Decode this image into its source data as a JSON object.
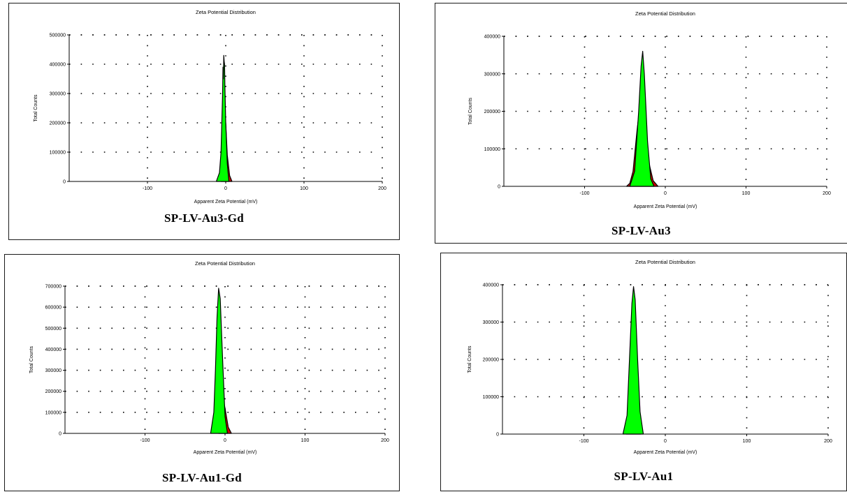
{
  "colors": {
    "fill_main": "#00ff00",
    "fill_tail": "#cc0000",
    "outline": "#000000",
    "grid": "#000000"
  },
  "chart_data": [
    {
      "type": "area",
      "title": "Zeta Potential Distribution",
      "xlabel": "Apparent Zeta Potential (mV)",
      "ylabel": "Total Counts",
      "sample_label": "SP-LV-Au3-Gd",
      "xlim": [
        -200,
        200
      ],
      "ylim": [
        0,
        500000
      ],
      "xticks": [
        -100,
        0,
        100,
        200
      ],
      "xtick_labels": [
        "-100",
        "0",
        "100",
        "200"
      ],
      "yticks": [
        0,
        100000,
        200000,
        300000,
        400000,
        500000
      ],
      "ytick_labels": [
        "0",
        "100000",
        "200000",
        "300000",
        "400000",
        "500000"
      ],
      "grid": true,
      "series": [
        {
          "x": [
            -12,
            -8,
            -6,
            -5,
            -4,
            -3.5,
            -3,
            -2.5,
            -2,
            -1.5,
            -1,
            0,
            2,
            4
          ],
          "y": [
            0,
            30000,
            100000,
            200000,
            300000,
            390000,
            350000,
            430000,
            410000,
            400000,
            320000,
            200000,
            60000,
            0
          ]
        },
        {
          "x": [
            -6,
            -4,
            -2,
            0,
            2,
            5,
            8
          ],
          "y": [
            0,
            60000,
            250000,
            200000,
            90000,
            20000,
            0
          ]
        }
      ]
    },
    {
      "type": "area",
      "title": "Zeta Potential Distribution",
      "xlabel": "Apparent Zeta Potential (mV)",
      "ylabel": "Total Counts",
      "sample_label": "SP-LV-Au3",
      "xlim": [
        -200,
        200
      ],
      "ylim": [
        0,
        400000
      ],
      "xticks": [
        -100,
        0,
        100,
        200
      ],
      "xtick_labels": [
        "-100",
        "0",
        "100",
        "200"
      ],
      "yticks": [
        0,
        100000,
        200000,
        300000,
        400000
      ],
      "ytick_labels": [
        "0",
        "100000",
        "200000",
        "300000",
        "400000"
      ],
      "grid": true,
      "series": [
        {
          "x": [
            -44,
            -38,
            -33,
            -30,
            -28,
            -26,
            -22,
            -18,
            -14
          ],
          "y": [
            0,
            40000,
            200000,
            320000,
            360000,
            300000,
            120000,
            20000,
            0
          ]
        },
        {
          "x": [
            -48,
            -44,
            -40,
            -35,
            -30,
            -25,
            -20,
            -15,
            -9
          ],
          "y": [
            0,
            8000,
            40000,
            150000,
            240000,
            140000,
            60000,
            15000,
            0
          ]
        }
      ]
    },
    {
      "type": "area",
      "title": "Zeta Potential Distribution",
      "xlabel": "Apparent Zeta Potential (mV)",
      "ylabel": "Total Counts",
      "sample_label": "SP-LV-Au1-Gd",
      "xlim": [
        -200,
        200
      ],
      "ylim": [
        0,
        700000
      ],
      "xticks": [
        -100,
        0,
        100,
        200
      ],
      "xtick_labels": [
        "-100",
        "0",
        "100",
        "200"
      ],
      "yticks": [
        0,
        100000,
        200000,
        300000,
        400000,
        500000,
        600000,
        700000
      ],
      "ytick_labels": [
        "0",
        "100000",
        "200000",
        "300000",
        "400000",
        "500000",
        "600000",
        "700000"
      ],
      "grid": true,
      "series": [
        {
          "x": [
            -18,
            -14,
            -12,
            -10,
            -8,
            -6,
            -3,
            0,
            3
          ],
          "y": [
            0,
            100000,
            300000,
            550000,
            690000,
            640000,
            350000,
            80000,
            0
          ]
        },
        {
          "x": [
            -8,
            -4,
            0,
            4,
            8
          ],
          "y": [
            0,
            200000,
            120000,
            30000,
            0
          ]
        }
      ]
    },
    {
      "type": "area",
      "title": "Zeta Potential Distribution",
      "xlabel": "Apparent Zeta Potential (mV)",
      "ylabel": "Total Counts",
      "sample_label": "SP-LV-Au1",
      "xlim": [
        -200,
        200
      ],
      "ylim": [
        0,
        400000
      ],
      "xticks": [
        -100,
        0,
        100,
        200
      ],
      "xtick_labels": [
        "-100",
        "0",
        "100",
        "200"
      ],
      "yticks": [
        0,
        100000,
        200000,
        300000,
        400000
      ],
      "ytick_labels": [
        "0",
        "100000",
        "200000",
        "300000",
        "400000"
      ],
      "grid": true,
      "series": [
        {
          "x": [
            -52,
            -47,
            -44,
            -41,
            -39,
            -37,
            -34,
            -31,
            -27
          ],
          "y": [
            0,
            50000,
            200000,
            350000,
            395000,
            360000,
            200000,
            60000,
            0
          ]
        },
        {
          "x": [
            -48,
            -44,
            -38,
            -34,
            -30
          ],
          "y": [
            0,
            10000,
            20000,
            8000,
            0
          ]
        }
      ]
    }
  ]
}
